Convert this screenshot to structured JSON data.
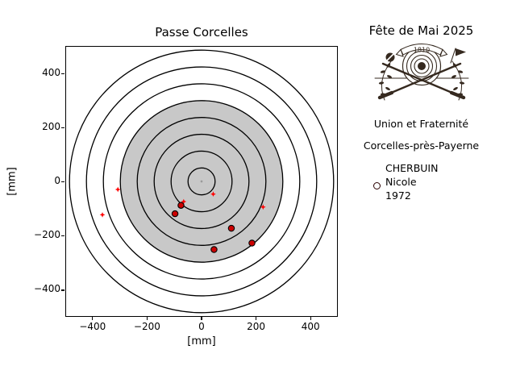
{
  "plot": {
    "title": "Passe Corcelles",
    "xlabel": "[mm]",
    "ylabel": "[mm]",
    "x_ticks": [
      "−400",
      "−200",
      "0",
      "200",
      "400"
    ],
    "y_ticks": [
      "400",
      "200",
      "0",
      "−200",
      "−400"
    ]
  },
  "panel": {
    "title": "Fête de Mai 2025",
    "motto": "Union et Fraternité",
    "location": "Corcelles-près-Payerne",
    "legend": {
      "surname": "CHERBUIN",
      "given_name": "Nicole",
      "year": "1972",
      "marker_color": "#b00000"
    },
    "emblem": {
      "banner_text": "1810",
      "ink_color": "#35291f"
    }
  },
  "chart_data": {
    "type": "scatter",
    "title": "Passe Corcelles",
    "xlabel": "[mm]",
    "ylabel": "[mm]",
    "xlim": [
      -500,
      500
    ],
    "ylim": [
      -500,
      500
    ],
    "grid": false,
    "target_rings_radii_mm": [
      50,
      112.5,
      175,
      237.5,
      300,
      362.5,
      425,
      487.5
    ],
    "gray_zone_radius_mm": 300,
    "colors": {
      "gray_zone": "#c8c8c8",
      "ring": "#000000",
      "center_dot": "#9a9a9a"
    },
    "series": [
      {
        "name": "shots-star-markers",
        "marker": "star",
        "color": "#ff0000",
        "points": [
          [
            -366,
            -124
          ],
          [
            -309,
            -30
          ],
          [
            -66,
            -75
          ],
          [
            43,
            -47
          ],
          [
            227,
            -95
          ]
        ]
      },
      {
        "name": "shots-circle-markers",
        "marker": "circle",
        "color": "#cc0000",
        "edge_color": "#000000",
        "points": [
          [
            -76,
            -89
          ],
          [
            -98,
            -120
          ],
          [
            110,
            -174
          ],
          [
            186,
            -229
          ],
          [
            46,
            -253
          ]
        ]
      }
    ],
    "legend_entries": [
      "CHERBUIN Nicole 1972"
    ]
  }
}
